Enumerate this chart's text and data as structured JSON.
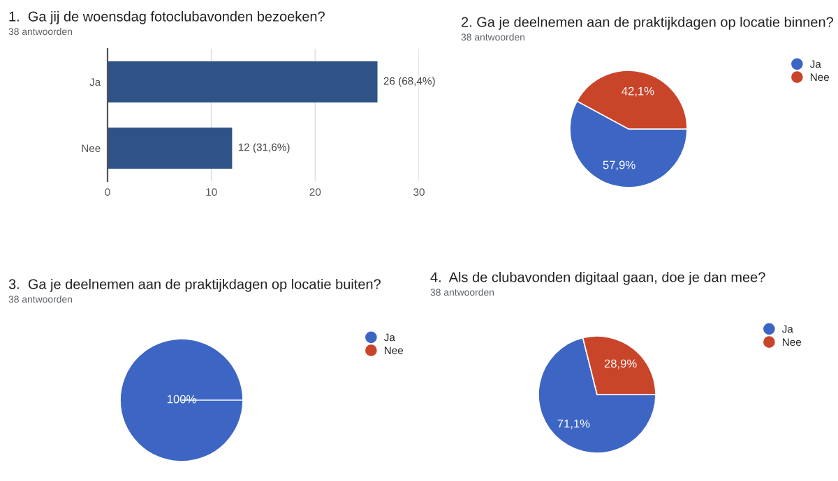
{
  "chart_data": [
    {
      "type": "bar",
      "orientation": "horizontal",
      "title": "1.  Ga jij de woensdag fotoclubavonden bezoeken?",
      "subtitle": "38 antwoorden",
      "categories": [
        "Ja",
        "Nee"
      ],
      "values": [
        26,
        12
      ],
      "value_labels": [
        "26 (68,4%)",
        "12 (31,6%)"
      ],
      "color": "#2f5387",
      "xlim": [
        0,
        30
      ],
      "xticks": [
        0,
        10,
        20,
        30
      ],
      "grid": "x",
      "legend": false
    },
    {
      "type": "pie",
      "title": "2. Ga je deelnemen aan de praktijkdagen op locatie binnen?",
      "subtitle": "38 antwoorden",
      "categories": [
        "Ja",
        "Nee"
      ],
      "values": [
        57.9,
        42.1
      ],
      "value_labels": [
        "57,9%",
        "42,1%"
      ],
      "colors": [
        "#3d66c4",
        "#c9452a"
      ],
      "legend": "top right"
    },
    {
      "type": "pie",
      "title": "3.  Ga je deelnemen aan de praktijkdagen op locatie buiten?",
      "subtitle": "38 antwoorden",
      "categories": [
        "Ja",
        "Nee"
      ],
      "values": [
        100,
        0
      ],
      "value_labels": [
        "100%",
        null
      ],
      "colors": [
        "#3d66c4",
        "#c9452a"
      ],
      "legend": "top right"
    },
    {
      "type": "pie",
      "title": "4.  Als de clubavonden digitaal gaan, doe je dan mee?",
      "subtitle": "38 antwoorden",
      "categories": [
        "Ja",
        "Nee"
      ],
      "values": [
        71.1,
        28.9
      ],
      "value_labels": [
        "71,1%",
        "28,9%"
      ],
      "colors": [
        "#3d66c4",
        "#c9452a"
      ],
      "legend": "top right"
    }
  ]
}
